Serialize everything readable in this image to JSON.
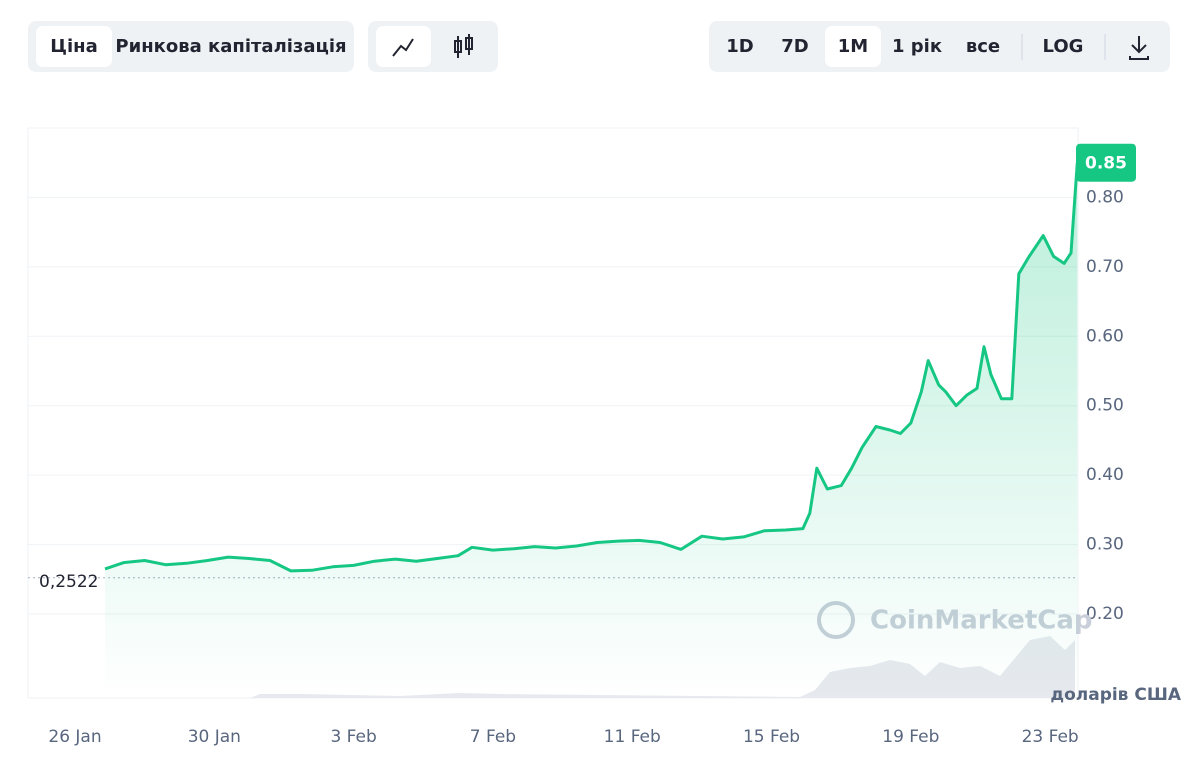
{
  "toolbar": {
    "tabs": [
      "Ціна",
      "Ринкова капіталізація"
    ],
    "ranges": [
      "1D",
      "7D",
      "1M",
      "1 рік",
      "все"
    ],
    "log": "LOG"
  },
  "chart_data": {
    "type": "area",
    "watermark": "CoinMarketCap",
    "unit_label": "доларів США",
    "series": [
      {
        "name": "Ціна",
        "color": "#16c784",
        "x": [
          0.86,
          1.4,
          2.0,
          2.6,
          3.2,
          3.8,
          4.4,
          5.0,
          5.6,
          6.2,
          6.8,
          7.4,
          8.0,
          8.6,
          9.2,
          9.8,
          10.4,
          11.0,
          11.4,
          12.0,
          12.6,
          13.2,
          13.8,
          14.4,
          15.0,
          15.6,
          16.2,
          16.8,
          17.4,
          18.0,
          18.6,
          19.2,
          19.8,
          20.4,
          20.9,
          21.1,
          21.3,
          21.6,
          22.0,
          22.3,
          22.6,
          23.0,
          23.4,
          23.7,
          24.0,
          24.3,
          24.5,
          24.8,
          25.0,
          25.3,
          25.6,
          25.9,
          26.1,
          26.3,
          26.6,
          26.9,
          27.1,
          27.4,
          27.8,
          28.1,
          28.4,
          28.6,
          28.78
        ],
        "values": [
          0.265,
          0.274,
          0.277,
          0.271,
          0.273,
          0.277,
          0.282,
          0.28,
          0.277,
          0.262,
          0.263,
          0.268,
          0.27,
          0.276,
          0.279,
          0.276,
          0.28,
          0.284,
          0.296,
          0.292,
          0.294,
          0.297,
          0.295,
          0.298,
          0.303,
          0.305,
          0.306,
          0.303,
          0.293,
          0.312,
          0.308,
          0.311,
          0.32,
          0.321,
          0.323,
          0.345,
          0.41,
          0.38,
          0.385,
          0.41,
          0.44,
          0.47,
          0.465,
          0.46,
          0.475,
          0.52,
          0.565,
          0.53,
          0.52,
          0.5,
          0.515,
          0.525,
          0.585,
          0.545,
          0.51,
          0.51,
          0.69,
          0.715,
          0.745,
          0.715,
          0.705,
          0.72,
          0.85
        ]
      }
    ],
    "reference": {
      "value": 0.2522,
      "label": "0,2522"
    },
    "last_price": 0.85,
    "xlim": [
      -1.35,
      28.8
    ],
    "xticks": [
      {
        "value": 0,
        "label": "26 Jan"
      },
      {
        "value": 4,
        "label": "30 Jan"
      },
      {
        "value": 8,
        "label": "3 Feb"
      },
      {
        "value": 12,
        "label": "7 Feb"
      },
      {
        "value": 16,
        "label": "11 Feb"
      },
      {
        "value": 20,
        "label": "15 Feb"
      },
      {
        "value": 24,
        "label": "19 Feb"
      },
      {
        "value": 28,
        "label": "23 Feb"
      }
    ],
    "ylim": [
      0.079,
      0.9
    ],
    "yticks": [
      {
        "value": 0.2,
        "label": "0.20"
      },
      {
        "value": 0.3,
        "label": "0.30"
      },
      {
        "value": 0.4,
        "label": "0.40"
      },
      {
        "value": 0.5,
        "label": "0.50"
      },
      {
        "value": 0.6,
        "label": "0.60"
      },
      {
        "value": 0.7,
        "label": "0.70"
      },
      {
        "value": 0.8,
        "label": "0.80"
      }
    ],
    "grid": true
  }
}
